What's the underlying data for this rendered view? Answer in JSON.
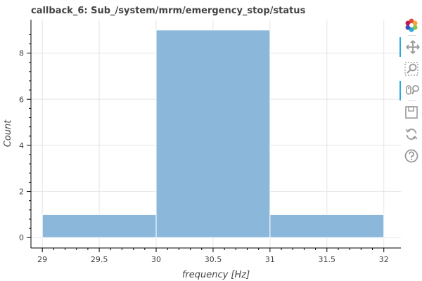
{
  "chart_data": {
    "type": "histogram",
    "title": "callback_6: Sub_/system/mrm/emergency_stop/status",
    "xlabel": "frequency [Hz]",
    "ylabel": "Count",
    "bins": [
      {
        "left": 29,
        "right": 30,
        "count": 1
      },
      {
        "left": 30,
        "right": 31,
        "count": 9
      },
      {
        "left": 31,
        "right": 32,
        "count": 1
      }
    ],
    "xlim": [
      28.9,
      32.15
    ],
    "ylim": [
      -0.45,
      9.45
    ],
    "x_ticks": [
      "29",
      "29.5",
      "30",
      "30.5",
      "31",
      "31.5",
      "32"
    ],
    "y_ticks": [
      "0",
      "2",
      "4",
      "6",
      "8"
    ],
    "bar_color": "#8bb8da",
    "grid": true
  },
  "toolbar": {
    "tools": [
      {
        "name": "bokeh-logo-icon",
        "active": false
      },
      {
        "name": "pan-icon",
        "active": true
      },
      {
        "name": "box-zoom-icon",
        "active": false
      },
      {
        "name": "wheel-zoom-icon",
        "active": true
      },
      {
        "name": "save-icon",
        "active": false
      },
      {
        "name": "reset-icon",
        "active": false
      },
      {
        "name": "help-icon",
        "active": false
      }
    ]
  }
}
